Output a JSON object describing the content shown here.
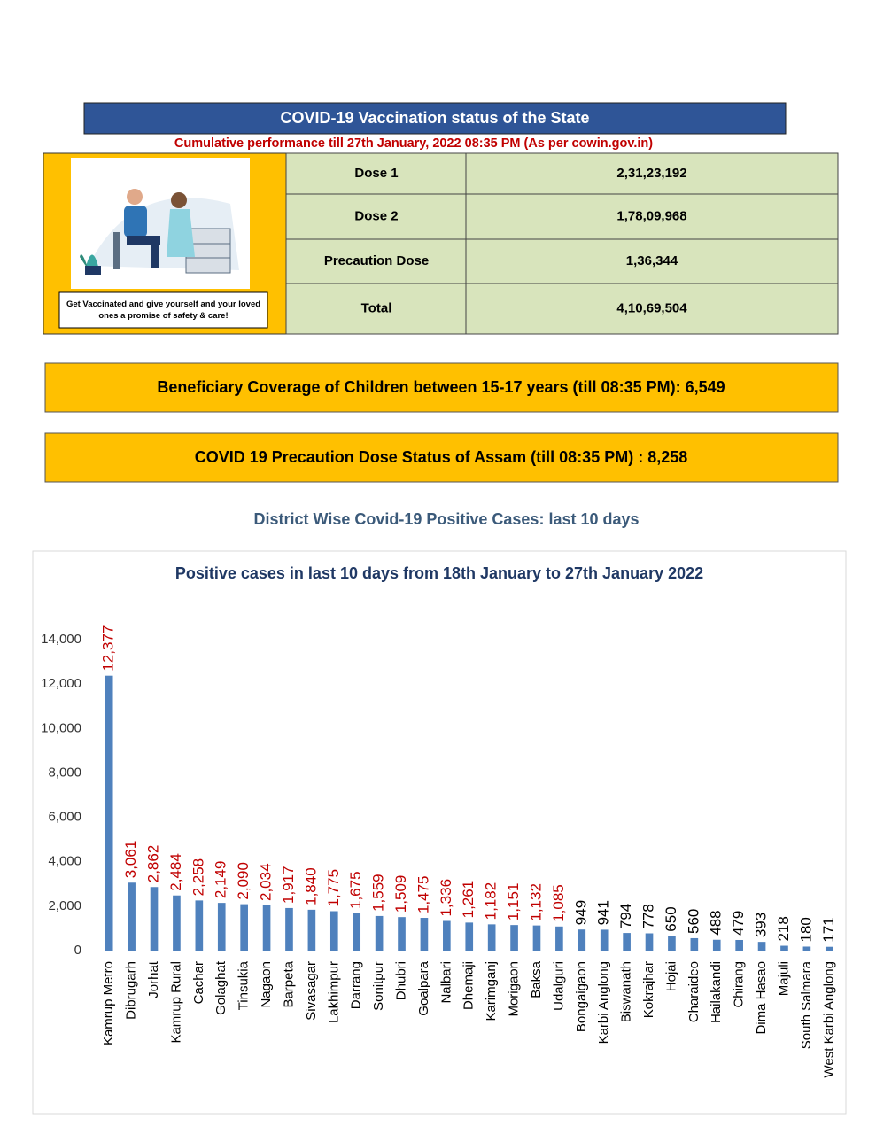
{
  "header": {
    "title": "COVID-19 Vaccination status of the State",
    "subtitle": "Cumulative performance till 27th January, 2022 08:35 PM (As per cowin.gov.in)"
  },
  "poster": {
    "caption": "Get Vaccinated and give yourself and your loved ones a promise of safety & care!"
  },
  "table": {
    "rows": [
      [
        "Dose 1",
        "2,31,23,192"
      ],
      [
        "Dose 2",
        "1,78,09,968"
      ],
      [
        "Precaution Dose",
        "1,36,344"
      ],
      [
        "Total",
        "4,10,69,504"
      ]
    ]
  },
  "banners": [
    "Beneficiary Coverage of Children between 15-17 years (till 08:35 PM): 6,549",
    "COVID 19 Precaution Dose Status of Assam (till 08:35 PM) : 8,258"
  ],
  "section_title": "District Wise Covid-19 Positive Cases: last 10 days",
  "chart_data": {
    "type": "bar",
    "title": "Positive cases in last 10 days from 18th January to 27th January 2022",
    "categories": [
      "Kamrup Metro",
      "Dibrugarh",
      "Jorhat",
      "Kamrup Rural",
      "Cachar",
      "Golaghat",
      "Tinsukia",
      "Nagaon",
      "Barpeta",
      "Sivasagar",
      "Lakhimpur",
      "Darrang",
      "Sonitpur",
      "Dhubri",
      "Goalpara",
      "Nalbari",
      "Dhemaji",
      "Karimganj",
      "Morigaon",
      "Baksa",
      "Udalguri",
      "Bongaigaon",
      "Karbi Anglong",
      "Biswanath",
      "Kokrajhar",
      "Hojai",
      "Charaideo",
      "Hailakandi",
      "Chirang",
      "Dima Hasao",
      "Majuli",
      "South Salmara",
      "West Karbi Anglong"
    ],
    "values": [
      12377,
      3061,
      2862,
      2484,
      2258,
      2149,
      2090,
      2034,
      1917,
      1840,
      1775,
      1675,
      1559,
      1509,
      1475,
      1336,
      1261,
      1182,
      1151,
      1132,
      1085,
      949,
      941,
      794,
      778,
      650,
      560,
      488,
      479,
      393,
      218,
      180,
      171
    ],
    "value_labels": [
      "12,377",
      "3,061",
      "2,862",
      "2,484",
      "2,258",
      "2,149",
      "2,090",
      "2,034",
      "1,917",
      "1,840",
      "1,775",
      "1,675",
      "1,559",
      "1,509",
      "1,475",
      "1,336",
      "1,261",
      "1,182",
      "1,151",
      "1,132",
      "1,085",
      "949",
      "941",
      "794",
      "778",
      "650",
      "560",
      "488",
      "479",
      "393",
      "218",
      "180",
      "171"
    ],
    "value_label_colors": [
      "#c00000",
      "#c00000",
      "#c00000",
      "#c00000",
      "#c00000",
      "#c00000",
      "#c00000",
      "#c00000",
      "#c00000",
      "#c00000",
      "#c00000",
      "#c00000",
      "#c00000",
      "#c00000",
      "#c00000",
      "#c00000",
      "#c00000",
      "#c00000",
      "#c00000",
      "#c00000",
      "#c00000",
      "#000000",
      "#000000",
      "#000000",
      "#000000",
      "#000000",
      "#000000",
      "#000000",
      "#000000",
      "#000000",
      "#000000",
      "#000000",
      "#000000"
    ],
    "color": "#4f81bd",
    "ylim": [
      0,
      14000
    ],
    "yticks": [
      0,
      {
        "value": 2000,
        "label": "2,000"
      },
      {
        "value": 4000,
        "label": "4,000"
      },
      {
        "value": 6000,
        "label": "6,000"
      },
      {
        "value": 8000,
        "label": "8,000"
      },
      {
        "value": 10000,
        "label": "10,000"
      },
      {
        "value": 12000,
        "label": "12,000"
      },
      {
        "value": 14000,
        "label": "14,000"
      }
    ],
    "grid": false
  }
}
